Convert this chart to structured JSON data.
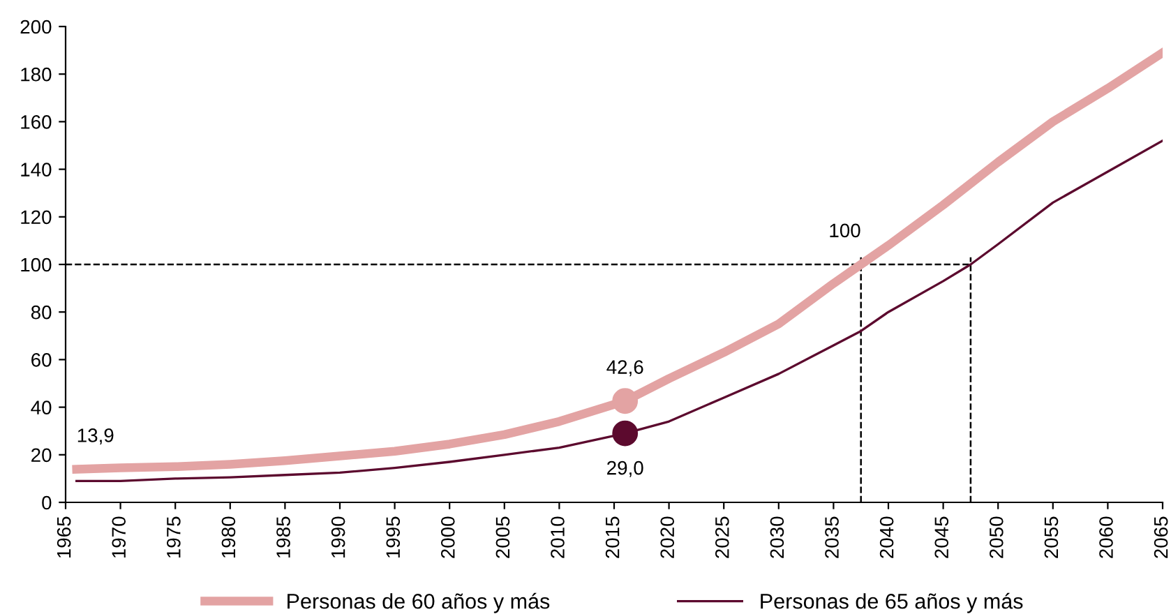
{
  "chart_data": {
    "type": "line",
    "series": [
      {
        "name": "Personas de 60 años y más",
        "color": "#e3a3a3",
        "x": [
          1966,
          1970,
          1975,
          1980,
          1985,
          1990,
          1995,
          2000,
          2005,
          2010,
          2016,
          2020,
          2025,
          2030,
          2035,
          2037.5,
          2040,
          2045,
          2050,
          2055,
          2060,
          2065
        ],
        "values": [
          13.9,
          14.5,
          15,
          16,
          17.5,
          19.5,
          21.5,
          24.5,
          28.5,
          34,
          42.6,
          52,
          63,
          75,
          92,
          100,
          108,
          125,
          143,
          160,
          174,
          189
        ]
      },
      {
        "name": "Personas de 65 años y más",
        "color": "#5c0a2e",
        "x": [
          1966,
          1970,
          1975,
          1980,
          1985,
          1990,
          1995,
          2000,
          2005,
          2010,
          2016,
          2020,
          2025,
          2030,
          2035,
          2037.5,
          2040,
          2045,
          2047.5,
          2050,
          2055,
          2060,
          2065
        ],
        "values": [
          9,
          9,
          10,
          10.5,
          11.5,
          12.5,
          14.5,
          17,
          20,
          23,
          29.0,
          34,
          44,
          54,
          66,
          72,
          80,
          93,
          100,
          108.5,
          126,
          139,
          152
        ]
      },
      {
        "type": "scatter",
        "marker": "circle",
        "color": "#e3a3a3",
        "x": [
          2016
        ],
        "values": [
          42.6
        ]
      },
      {
        "type": "scatter",
        "marker": "circle",
        "color": "#5c0a2e",
        "x": [
          2016
        ],
        "values": [
          29.0
        ]
      }
    ],
    "xlim": [
      1965,
      2065
    ],
    "xticks": [
      1965,
      1970,
      1975,
      1980,
      1985,
      1990,
      1995,
      2000,
      2005,
      2010,
      2015,
      2020,
      2025,
      2030,
      2035,
      2040,
      2045,
      2050,
      2055,
      2060,
      2065
    ],
    "ylim": [
      0,
      200
    ],
    "yticks": [
      0,
      20,
      40,
      60,
      80,
      100,
      120,
      140,
      160,
      180,
      200
    ],
    "ref_lines": [
      {
        "axis": "y",
        "value": 100,
        "line_style": "dashed",
        "color": "#000000"
      },
      {
        "axis": "x",
        "value": 2037.5,
        "line_style": "dashed",
        "color": "#000000"
      },
      {
        "axis": "x",
        "value": 2047.5,
        "line_style": "dashed",
        "color": "#000000"
      }
    ],
    "annotations": [
      {
        "text": "13,9",
        "x": 1966,
        "y": 13.9
      },
      {
        "text": "42,6",
        "x": 2016,
        "y": 42.6
      },
      {
        "text": "29,0",
        "x": 2016,
        "y": 29.0
      },
      {
        "text": "100",
        "x": 2037.5,
        "y": 100
      }
    ],
    "legend": "bottom",
    "grid": false,
    "marker": "none",
    "line_style": "solid"
  }
}
